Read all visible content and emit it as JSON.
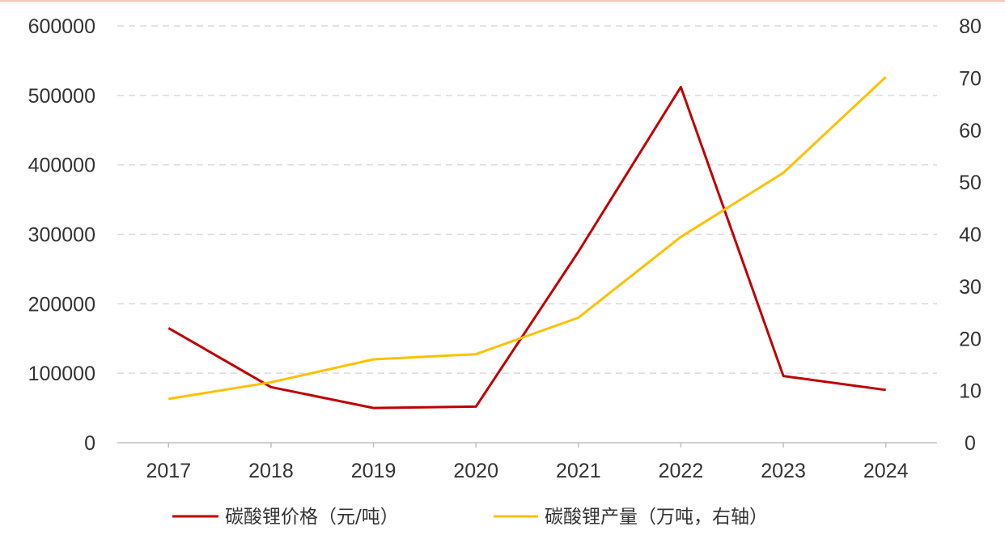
{
  "chart_data": {
    "type": "line",
    "title": "",
    "categories": [
      "2017",
      "2018",
      "2019",
      "2020",
      "2021",
      "2022",
      "2023",
      "2024"
    ],
    "series": [
      {
        "name": "碳酸锂价格（元/吨）",
        "axis": "left",
        "color": "#c00000",
        "values": [
          165000,
          80000,
          50000,
          52000,
          275000,
          512000,
          96000,
          76000
        ]
      },
      {
        "name": "碳酸锂产量（万吨，右轴）",
        "axis": "right",
        "color": "#ffc000",
        "values": [
          8.4,
          11.6,
          16.0,
          17.0,
          24.0,
          39.5,
          51.8,
          70.2
        ]
      }
    ],
    "y_left": {
      "range": [
        0,
        600000
      ],
      "ticks": [
        "0",
        "100000",
        "200000",
        "300000",
        "400000",
        "500000",
        "600000"
      ]
    },
    "y_right": {
      "range": [
        0,
        80
      ],
      "ticks": [
        "0",
        "10",
        "20",
        "30",
        "40",
        "50",
        "60",
        "70",
        "80"
      ]
    },
    "grid": "horizontal dashed",
    "legend_position": "bottom"
  }
}
